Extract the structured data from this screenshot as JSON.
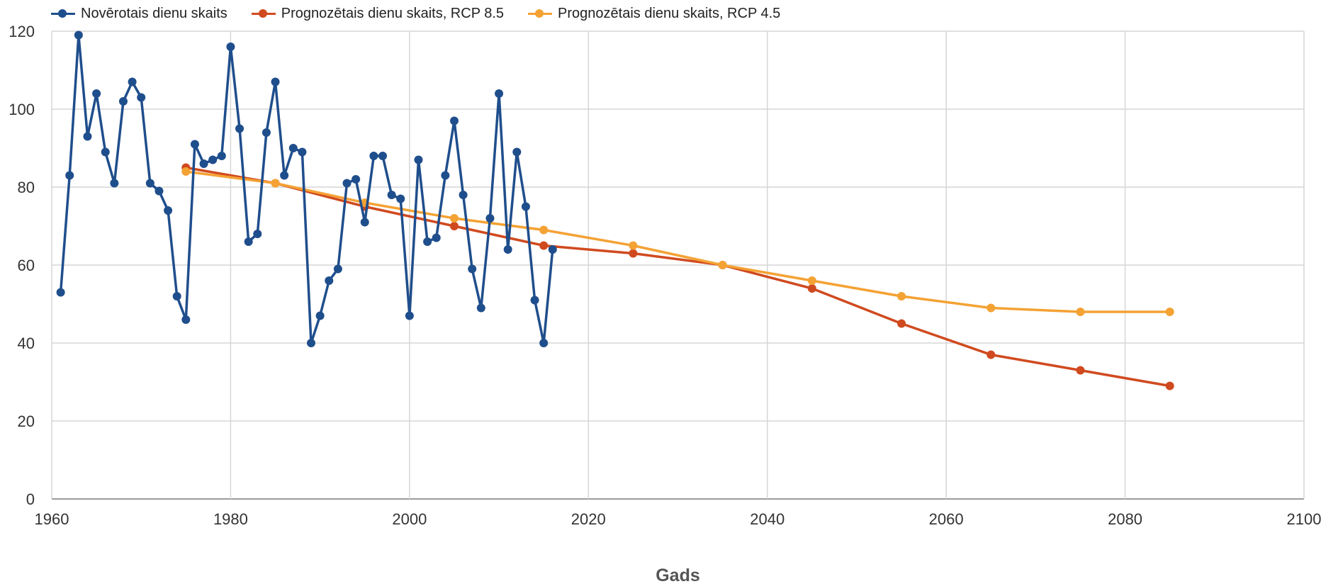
{
  "chart_data": {
    "type": "line",
    "title": "",
    "xlabel": "Gads",
    "ylabel": "",
    "xlim": [
      1960,
      2100
    ],
    "ylim": [
      0,
      120
    ],
    "x_ticks": [
      1960,
      1980,
      2000,
      2020,
      2040,
      2060,
      2080,
      2100
    ],
    "y_ticks": [
      0,
      20,
      40,
      60,
      80,
      100,
      120
    ],
    "grid": true,
    "legend_position": "top-left",
    "series": [
      {
        "name": "Novērotais dienu skaits",
        "color": "#1f4e8c",
        "x": [
          1961,
          1962,
          1963,
          1964,
          1965,
          1966,
          1967,
          1968,
          1969,
          1970,
          1971,
          1972,
          1973,
          1974,
          1975,
          1976,
          1977,
          1978,
          1979,
          1980,
          1981,
          1982,
          1983,
          1984,
          1985,
          1986,
          1987,
          1988,
          1989,
          1990,
          1991,
          1992,
          1993,
          1994,
          1995,
          1996,
          1997,
          1998,
          1999,
          2000,
          2001,
          2002,
          2003,
          2004,
          2005,
          2006,
          2007,
          2008,
          2009,
          2010,
          2011,
          2012,
          2013,
          2014,
          2015,
          2016
        ],
        "y": [
          53,
          83,
          119,
          93,
          104,
          89,
          81,
          102,
          107,
          103,
          81,
          79,
          74,
          52,
          46,
          91,
          86,
          87,
          88,
          116,
          95,
          66,
          68,
          94,
          107,
          83,
          90,
          89,
          40,
          47,
          56,
          59,
          81,
          82,
          71,
          88,
          88,
          78,
          77,
          47,
          87,
          66,
          67,
          83,
          97,
          78,
          59,
          49,
          72,
          104,
          64,
          89,
          75,
          51,
          40,
          64
        ]
      },
      {
        "name": "Prognozētais dienu skaits, RCP 8.5",
        "color": "#d04a1f",
        "x": [
          1975,
          1985,
          1995,
          2005,
          2015,
          2025,
          2035,
          2045,
          2055,
          2065,
          2075,
          2085
        ],
        "y": [
          85,
          81,
          75,
          70,
          65,
          63,
          60,
          54,
          45,
          37,
          33,
          29
        ]
      },
      {
        "name": "Prognozētais dienu skaits, RCP 4.5",
        "color": "#f4a234",
        "x": [
          1975,
          1985,
          1995,
          2005,
          2015,
          2025,
          2035,
          2045,
          2055,
          2065,
          2075,
          2085
        ],
        "y": [
          84,
          81,
          76,
          72,
          69,
          65,
          60,
          56,
          52,
          49,
          48,
          48
        ]
      }
    ]
  }
}
